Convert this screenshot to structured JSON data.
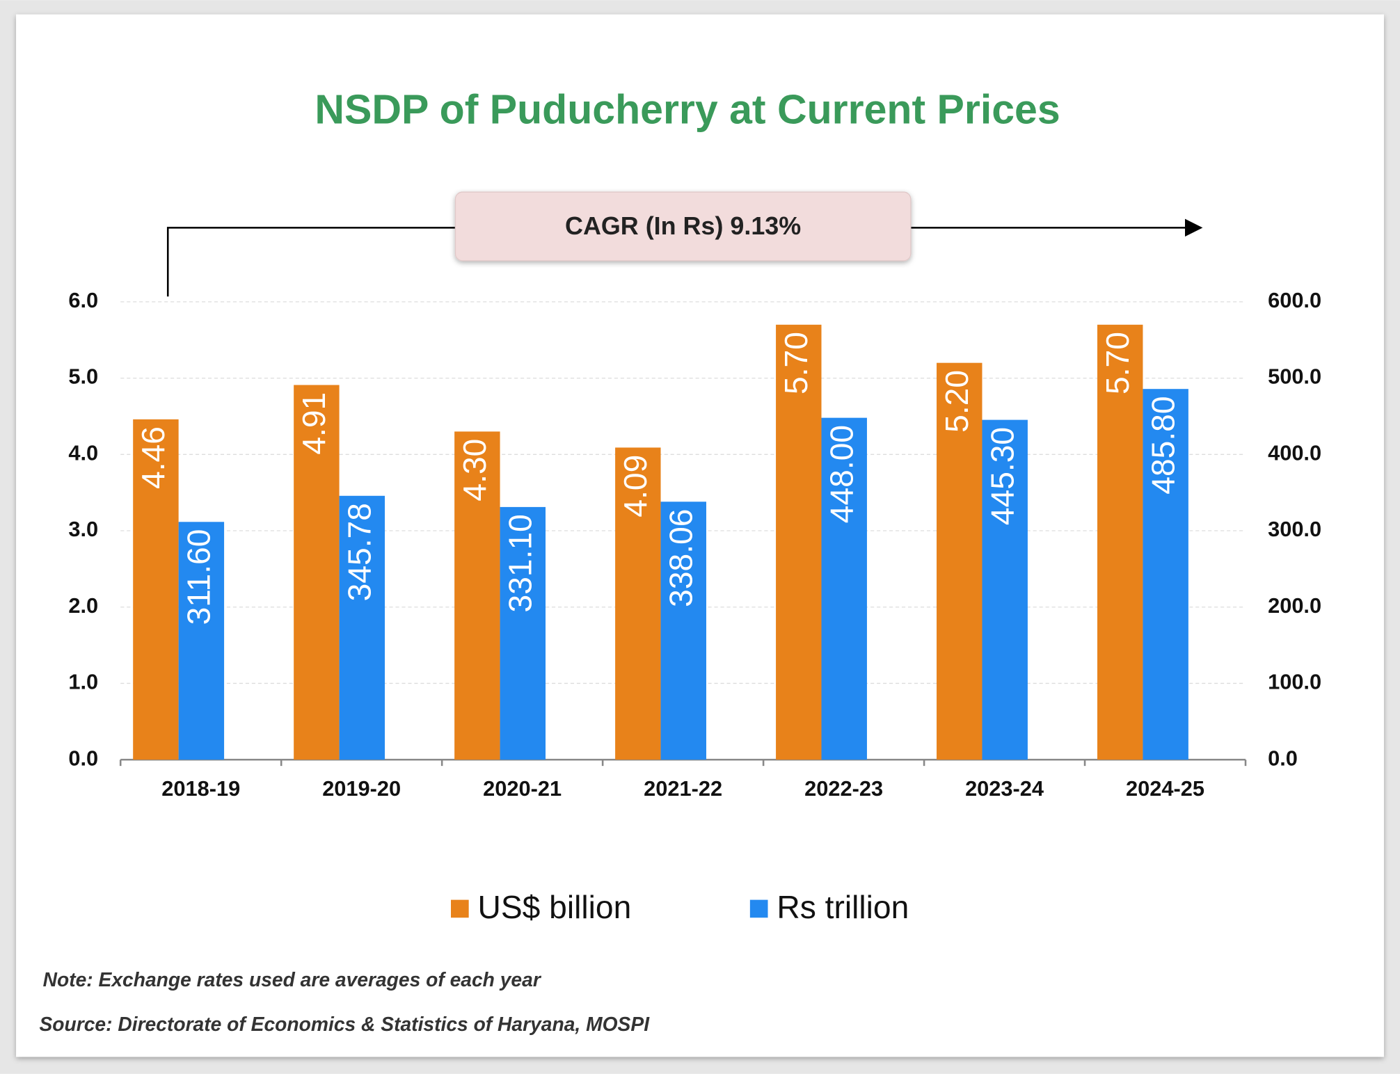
{
  "chart_data": {
    "type": "bar",
    "title": "NSDP of Puducherry at Current Prices",
    "annotation": "CAGR (In Rs) 9.13%",
    "categories": [
      "2018-19",
      "2019-20",
      "2020-21",
      "2021-22",
      "2022-23",
      "2023-24",
      "2024-25"
    ],
    "series": [
      {
        "name": "US$ billion",
        "color": "#e8821a",
        "axis": "y",
        "values": [
          4.46,
          4.91,
          4.3,
          4.09,
          5.7,
          5.2,
          5.7
        ],
        "value_labels": [
          "4.46",
          "4.91",
          "4.30",
          "4.09",
          "5.70",
          "5.20",
          "5.70"
        ]
      },
      {
        "name": "Rs trillion",
        "color": "#2389f0",
        "axis": "y2",
        "values": [
          311.6,
          345.78,
          331.1,
          338.06,
          448,
          445.3,
          485.8
        ],
        "value_labels": [
          "311.60",
          "345.78",
          "331.10",
          "338.06",
          "448.00",
          "445.30",
          "485.80"
        ]
      }
    ],
    "ylim": [
      0,
      6
    ],
    "yticks": [
      {
        "value": 0,
        "label": "0.0"
      },
      {
        "value": 1,
        "label": "1.0"
      },
      {
        "value": 2,
        "label": "2.0"
      },
      {
        "value": 3,
        "label": "3.0"
      },
      {
        "value": 4,
        "label": "4.0"
      },
      {
        "value": 5,
        "label": "5.0"
      },
      {
        "value": 6,
        "label": "6.0"
      }
    ],
    "y2lim": [
      0,
      600
    ],
    "y2ticks": [
      {
        "value": 0,
        "label": "0.0"
      },
      {
        "value": 100,
        "label": "100.0"
      },
      {
        "value": 200,
        "label": "200.0"
      },
      {
        "value": 300,
        "label": "300.0"
      },
      {
        "value": 400,
        "label": "400.0"
      },
      {
        "value": 500,
        "label": "500.0"
      },
      {
        "value": 600,
        "label": "600.0"
      }
    ],
    "grid": true,
    "legend": "bottom",
    "note": "Note: Exchange rates used are averages of each year",
    "source": "Source: Directorate of Economics & Statistics of Haryana, MOSPI"
  }
}
